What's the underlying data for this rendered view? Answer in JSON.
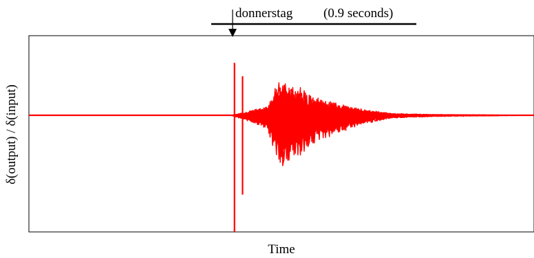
{
  "chart_data": {
    "type": "line",
    "annotation": {
      "word": "donnerstag",
      "duration": "(0.9 seconds)"
    },
    "xlabel": "Time",
    "ylabel": "δ(output) / δ(input)",
    "xlim": [
      0,
      1
    ],
    "ylim": [
      -1,
      1
    ],
    "grid": false,
    "legend": "none",
    "colors": {
      "series": "#ff0000",
      "frame": "#000000"
    },
    "envelope": {
      "x": [
        0.0,
        0.4,
        0.44,
        0.47,
        0.5,
        0.52,
        0.54,
        0.56,
        0.58,
        0.6,
        0.62,
        0.65,
        0.68,
        0.72,
        0.8,
        1.0
      ],
      "amp": [
        0.0,
        0.0,
        0.05,
        0.1,
        0.4,
        0.32,
        0.28,
        0.22,
        0.18,
        0.15,
        0.12,
        0.08,
        0.05,
        0.02,
        0.01,
        0.0
      ]
    },
    "spike": {
      "x": 0.407,
      "ymax": 0.66,
      "ymin": -1.0
    },
    "secondary_spike": {
      "x": 0.423,
      "ymax": 0.49,
      "ymin": -0.68
    },
    "n_series": 40
  }
}
